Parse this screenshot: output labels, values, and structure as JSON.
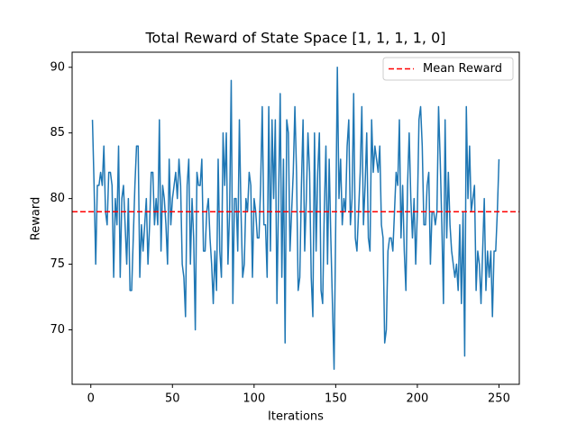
{
  "chart_data": {
    "type": "line",
    "title": "Total Reward of State Space [1, 1, 1, 1, 0]",
    "x_label": "Iterations",
    "y_label": "Reward",
    "xlim": [
      -11.45,
      262.45
    ],
    "ylim": [
      65.85,
      91.15
    ],
    "xticks": [
      0,
      50,
      100,
      150,
      200,
      250
    ],
    "yticks": [
      70,
      75,
      80,
      85,
      90
    ],
    "grid": false,
    "legend": "upper right",
    "x": [
      1,
      2,
      3,
      4,
      5,
      6,
      7,
      8,
      9,
      10,
      11,
      12,
      13,
      14,
      15,
      16,
      17,
      18,
      19,
      20,
      21,
      22,
      23,
      24,
      25,
      26,
      27,
      28,
      29,
      30,
      31,
      32,
      33,
      34,
      35,
      36,
      37,
      38,
      39,
      40,
      41,
      42,
      43,
      44,
      45,
      46,
      47,
      48,
      49,
      50,
      51,
      52,
      53,
      54,
      55,
      56,
      57,
      58,
      59,
      60,
      61,
      62,
      63,
      64,
      65,
      66,
      67,
      68,
      69,
      70,
      71,
      72,
      73,
      74,
      75,
      76,
      77,
      78,
      79,
      80,
      81,
      82,
      83,
      84,
      85,
      86,
      87,
      88,
      89,
      90,
      91,
      92,
      93,
      94,
      95,
      96,
      97,
      98,
      99,
      100,
      101,
      102,
      103,
      104,
      105,
      106,
      107,
      108,
      109,
      110,
      111,
      112,
      113,
      114,
      115,
      116,
      117,
      118,
      119,
      120,
      121,
      122,
      123,
      124,
      125,
      126,
      127,
      128,
      129,
      130,
      131,
      132,
      133,
      134,
      135,
      136,
      137,
      138,
      139,
      140,
      141,
      142,
      143,
      144,
      145,
      146,
      147,
      148,
      149,
      150,
      151,
      152,
      153,
      154,
      155,
      156,
      157,
      158,
      159,
      160,
      161,
      162,
      163,
      164,
      165,
      166,
      167,
      168,
      169,
      170,
      171,
      172,
      173,
      174,
      175,
      176,
      177,
      178,
      179,
      180,
      181,
      182,
      183,
      184,
      185,
      186,
      187,
      188,
      189,
      190,
      191,
      192,
      193,
      194,
      195,
      196,
      197,
      198,
      199,
      200,
      201,
      202,
      203,
      204,
      205,
      206,
      207,
      208,
      209,
      210,
      211,
      212,
      213,
      214,
      215,
      216,
      217,
      218,
      219,
      220,
      221,
      222,
      223,
      224,
      225,
      226,
      227,
      228,
      229,
      230,
      231,
      232,
      233,
      234,
      235,
      236,
      237,
      238,
      239,
      240,
      241,
      242,
      243,
      244,
      245,
      246,
      247,
      248,
      249,
      250
    ],
    "series": [
      {
        "color": "#1f77b4",
        "values": [
          86,
          81,
          75,
          81,
          81,
          82,
          81,
          84,
          79,
          78,
          82,
          82,
          81,
          74,
          80,
          78,
          84,
          74,
          80,
          81,
          78,
          75,
          80,
          73,
          73,
          77,
          81,
          84,
          84,
          74,
          78,
          76,
          78,
          80,
          75,
          78,
          82,
          82,
          78,
          80,
          78,
          86,
          76,
          81,
          80,
          78,
          75,
          83,
          78,
          80,
          81,
          82,
          80,
          83,
          81,
          75,
          74,
          71,
          81,
          83,
          75,
          80,
          77,
          70,
          82,
          81,
          81,
          83,
          76,
          76,
          79,
          80,
          77,
          75,
          72,
          76,
          73,
          83,
          76,
          74,
          85,
          81,
          85,
          75,
          79,
          89,
          72,
          80,
          80,
          76,
          86,
          79,
          74,
          75,
          80,
          79,
          82,
          81,
          74,
          80,
          79,
          77,
          77,
          81,
          87,
          78,
          78,
          74,
          87,
          76,
          86,
          80,
          86,
          72,
          80,
          88,
          74,
          83,
          69,
          86,
          85,
          76,
          79,
          82,
          87,
          82,
          73,
          74,
          81,
          86,
          76,
          80,
          85,
          82,
          74,
          71,
          85,
          76,
          82,
          85,
          73,
          72,
          79,
          84,
          75,
          83,
          77,
          72,
          67,
          78,
          90,
          80,
          83,
          78,
          80,
          79,
          84,
          86,
          78,
          80,
          88,
          77,
          76,
          79,
          82,
          87,
          78,
          81,
          85,
          77,
          76,
          86,
          82,
          84,
          83,
          82,
          84,
          78,
          77,
          69,
          70,
          76,
          77,
          77,
          76,
          79,
          82,
          81,
          86,
          77,
          81,
          76,
          73,
          81,
          85,
          80,
          77,
          80,
          75,
          79,
          86,
          87,
          84,
          78,
          78,
          81,
          82,
          75,
          79,
          79,
          78,
          79,
          87,
          83,
          78,
          72,
          86,
          77,
          82,
          78,
          76,
          75,
          74,
          75,
          73,
          78,
          72,
          79,
          68,
          87,
          80,
          84,
          79,
          80,
          81,
          73,
          76,
          75,
          72,
          76,
          80,
          73,
          76,
          74,
          76,
          71,
          76,
          76,
          79,
          83
        ]
      }
    ],
    "mean_line": {
      "name": "Mean Reward",
      "value": 79,
      "color": "#ff0000"
    }
  }
}
